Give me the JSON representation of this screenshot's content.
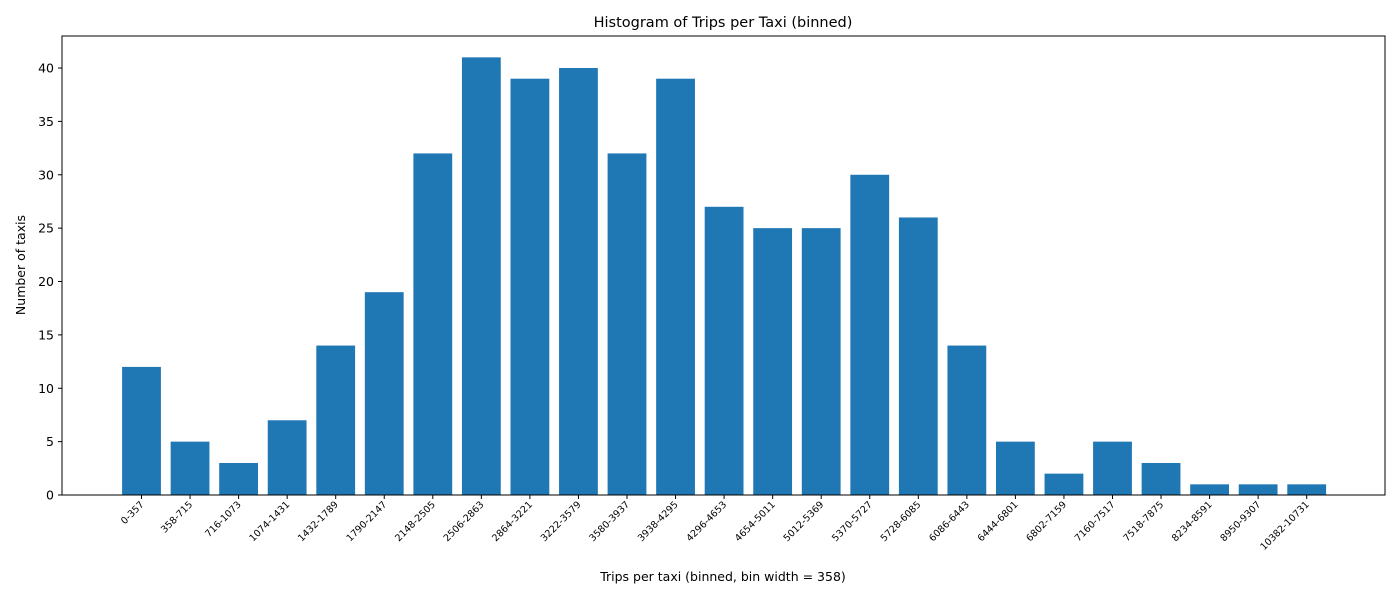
{
  "chart_data": {
    "type": "bar",
    "title": "Histogram of Trips per Taxi (binned)",
    "xlabel": "Trips per taxi (binned, bin width = 358)",
    "ylabel": "Number of taxis",
    "categories": [
      "0-357",
      "358-715",
      "716-1073",
      "1074-1431",
      "1432-1789",
      "1790-2147",
      "2148-2505",
      "2506-2863",
      "2864-3221",
      "3222-3579",
      "3580-3937",
      "3938-4295",
      "4296-4653",
      "4654-5011",
      "5012-5369",
      "5370-5727",
      "5728-6085",
      "6086-6443",
      "6444-6801",
      "6802-7159",
      "7160-7517",
      "7518-7875",
      "8234-8591",
      "8950-9307",
      "10382-10731"
    ],
    "values": [
      12,
      5,
      3,
      7,
      14,
      19,
      32,
      41,
      39,
      40,
      32,
      39,
      27,
      25,
      25,
      30,
      26,
      14,
      5,
      2,
      5,
      3,
      1,
      1,
      1
    ],
    "ylim": [
      0,
      43
    ],
    "yticks": [
      0,
      5,
      10,
      15,
      20,
      25,
      30,
      35,
      40
    ],
    "color": "#1f77b4",
    "grid": false,
    "legend": "none"
  }
}
